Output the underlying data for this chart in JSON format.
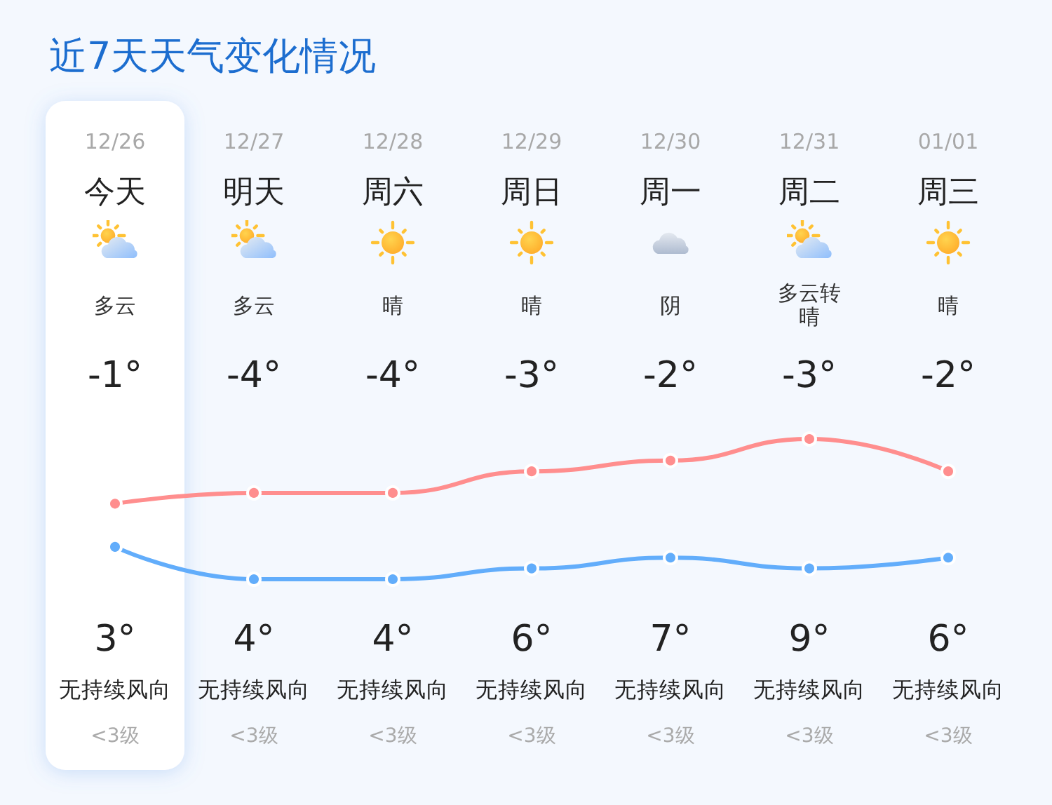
{
  "chart_data": {
    "type": "line",
    "title": "近7天天气变化情况",
    "categories": [
      "12/26",
      "12/27",
      "12/28",
      "12/29",
      "12/30",
      "12/31",
      "01/01"
    ],
    "series": [
      {
        "color": "#ff8e8e",
        "values": [
          3,
          4,
          4,
          6,
          7,
          9,
          6
        ],
        "value_labels": [
          "3°",
          "4°",
          "4°",
          "6°",
          "7°",
          "9°",
          "6°"
        ]
      },
      {
        "color": "#62adfb",
        "values": [
          -1,
          -4,
          -4,
          -3,
          -2,
          -3,
          -2
        ],
        "value_labels": [
          "-1°",
          "-4°",
          "-4°",
          "-3°",
          "-2°",
          "-3°",
          "-2°"
        ]
      }
    ],
    "marker": "circle",
    "tick_labels": "x",
    "bands": [
      {
        "axis": "x",
        "from": "12/26",
        "to": "12/26",
        "color": "#ffffff"
      }
    ],
    "annotations": [
      "今天",
      "明天",
      "周六",
      "周日",
      "周一",
      "周二",
      "周三",
      "多云",
      "多云",
      "晴",
      "晴",
      "阴",
      "多云转晴",
      "晴",
      "无持续风向",
      "无持续风向",
      "无持续风向",
      "无持续风向",
      "无持续风向",
      "无持续风向",
      "无持续风向",
      "<3级",
      "<3级",
      "<3级",
      "<3级",
      "<3级",
      "<3级",
      "<3级"
    ]
  }
}
